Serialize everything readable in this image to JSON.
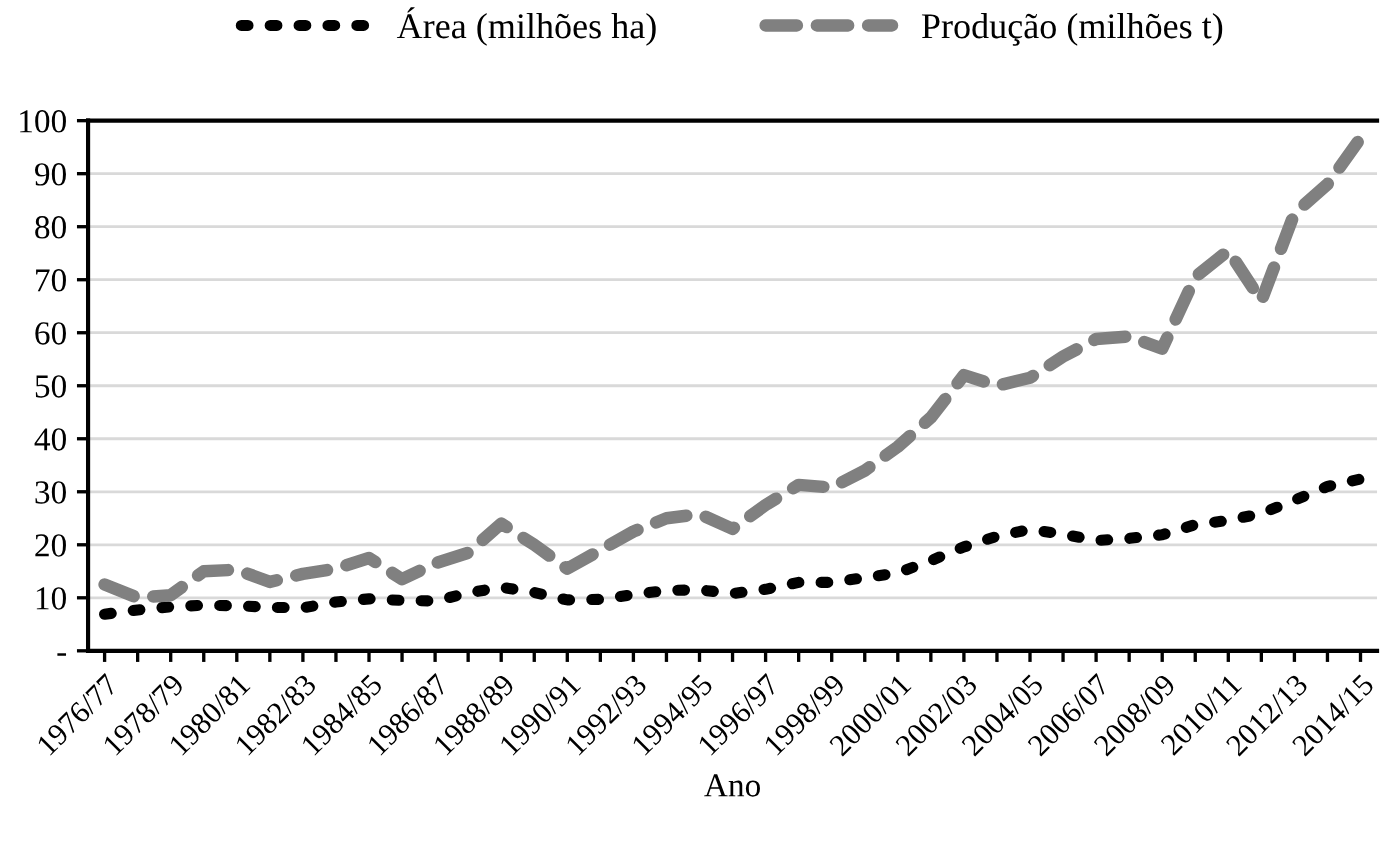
{
  "chart_data": {
    "type": "line",
    "xlabel": "Ano",
    "categories": [
      "1976/77",
      null,
      "1978/79",
      null,
      "1980/81",
      null,
      "1982/83",
      null,
      "1984/85",
      null,
      "1986/87",
      null,
      "1988/89",
      null,
      "1990/91",
      null,
      "1992/93",
      null,
      "1994/95",
      null,
      "1996/97",
      null,
      "1998/99",
      null,
      "2000/01",
      null,
      "2002/03",
      null,
      "2004/05",
      null,
      "2006/07",
      null,
      "2008/09",
      null,
      "2010/11",
      null,
      "2012/13",
      null,
      "2014/15"
    ],
    "series": [
      {
        "name": "Área (milhões ha)",
        "color": "#000000",
        "line_style": "dotted",
        "values": [
          6.9,
          7.7,
          8.3,
          8.6,
          8.5,
          8.2,
          8.1,
          9.2,
          9.8,
          9.5,
          9.4,
          10.9,
          12.0,
          11.0,
          9.6,
          9.7,
          10.6,
          11.4,
          11.5,
          10.8,
          11.6,
          12.9,
          12.9,
          13.8,
          14.7,
          17.0,
          19.6,
          21.6,
          22.9,
          22.0,
          20.8,
          21.2,
          21.9,
          23.8,
          24.6,
          25.9,
          28.4,
          31.0,
          32.4
        ]
      },
      {
        "name": "Produção (milhões t)",
        "color": "#808080",
        "line_style": "dashed",
        "values": [
          12.5,
          10,
          10.5,
          15,
          15.3,
          13,
          14.5,
          15.5,
          17.5,
          13.5,
          16.5,
          18.5,
          24,
          20,
          15.5,
          19,
          22.5,
          25,
          25.8,
          23,
          27.5,
          31.3,
          30.8,
          34,
          38.5,
          44,
          52,
          50,
          51.5,
          55.5,
          58.8,
          59.3,
          57,
          70.5,
          75.5,
          66,
          82.5,
          88,
          96.7
        ]
      }
    ],
    "ylim": [
      0,
      100
    ],
    "yticks": [
      {
        "value": 0,
        "label": "-"
      },
      10,
      20,
      30,
      40,
      50,
      60,
      70,
      80,
      90,
      100
    ],
    "grid": "y",
    "legend": "top"
  }
}
